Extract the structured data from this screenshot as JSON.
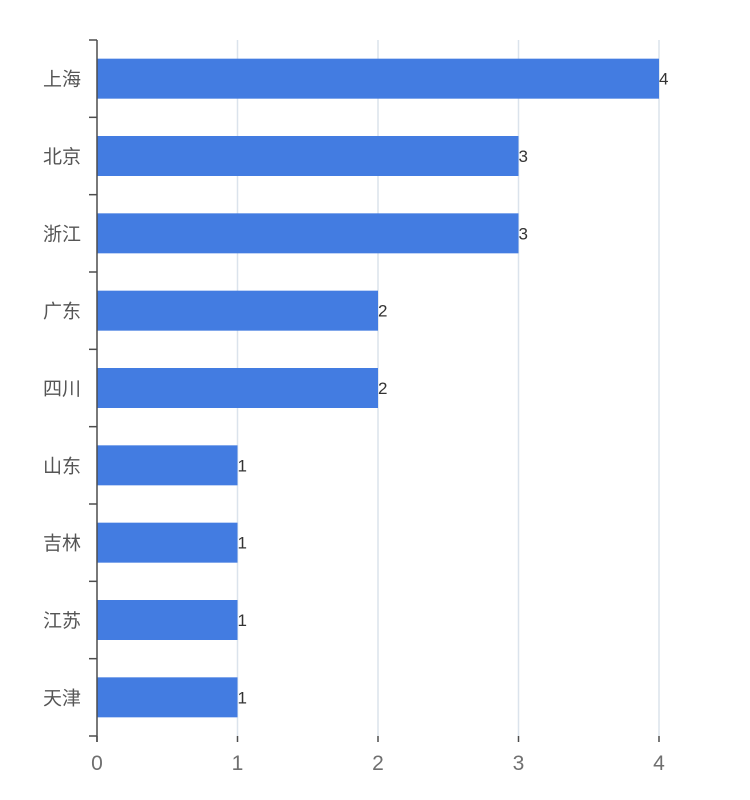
{
  "chart_data": {
    "type": "bar",
    "orientation": "horizontal",
    "title": "",
    "xlabel": "",
    "ylabel": "",
    "categories": [
      "上海",
      "北京",
      "浙江",
      "广东",
      "四川",
      "山东",
      "吉林",
      "江苏",
      "天津"
    ],
    "values": [
      4,
      3,
      3,
      2,
      2,
      1,
      1,
      1,
      1
    ],
    "xlim": [
      0,
      4
    ],
    "x_ticks": [
      "0",
      "1",
      "2",
      "3",
      "4"
    ],
    "grid": "vertical",
    "legend": "none",
    "data_labels": true
  },
  "colors": {
    "bar": "#437ce1",
    "grid": "#dbe3ec",
    "axis": "#4d4d4d",
    "category_text": "#555555",
    "tick_text": "#6f6f6f",
    "data_label_text": "#333333"
  }
}
